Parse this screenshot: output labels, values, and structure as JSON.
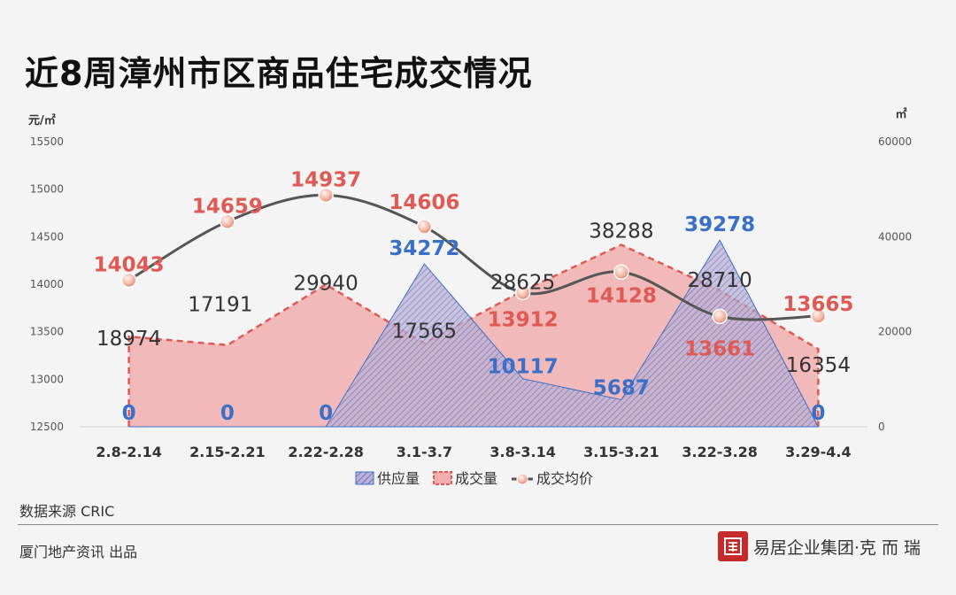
{
  "title": "近8周漳州市区商品住宅成交情况",
  "footer": {
    "source": "数据来源  CRIC",
    "publisher": "厦门地产资讯  出品",
    "brand_text": "易居企业集团·克 而 瑞"
  },
  "colors": {
    "supply": "#3a6fc9",
    "deal_fill": "#f0aeae",
    "deal_line": "#e05a55",
    "price_line": "#555555",
    "price_marker": "#e8a08f"
  },
  "chart_data": {
    "type": "area",
    "categories": [
      "2.8-2.14",
      "2.15-2.21",
      "2.22-2.28",
      "3.1-3.7",
      "3.8-3.14",
      "3.15-3.21",
      "3.22-3.28",
      "3.29-4.4"
    ],
    "left_axis": {
      "unit": "元/㎡",
      "min": 12500,
      "max": 15500,
      "ticks": [
        12500,
        13000,
        13500,
        14000,
        14500,
        15000,
        15500
      ]
    },
    "right_axis": {
      "unit": "㎡",
      "min": 0,
      "max": 60000,
      "ticks": [
        0,
        20000,
        40000,
        60000
      ]
    },
    "series": [
      {
        "name": "供应量",
        "type": "area",
        "axis": "right",
        "values": [
          0,
          0,
          0,
          34272,
          10117,
          5687,
          39278,
          0
        ]
      },
      {
        "name": "成交量",
        "type": "area",
        "axis": "right",
        "values": [
          18974,
          17191,
          29940,
          17565,
          28625,
          38288,
          28710,
          16354
        ]
      },
      {
        "name": "成交均价",
        "type": "line",
        "axis": "left",
        "values": [
          14043,
          14659,
          14937,
          14606,
          13912,
          14128,
          13661,
          13665
        ]
      }
    ],
    "legend_position": "bottom"
  }
}
